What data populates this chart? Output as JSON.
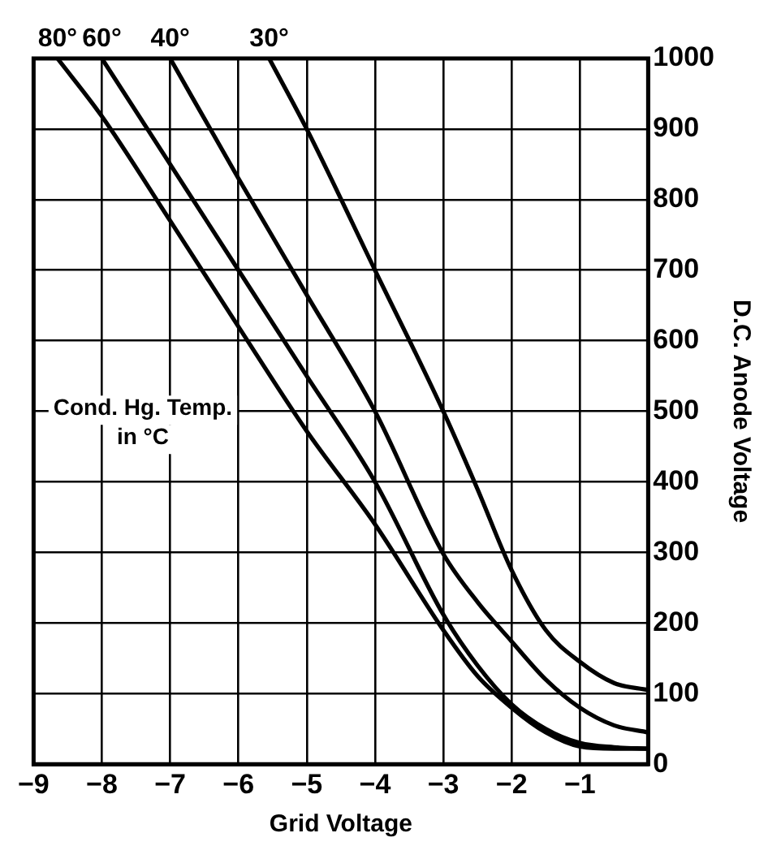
{
  "chart_data": {
    "type": "line",
    "xlabel": "Grid Voltage",
    "ylabel": "D.C. Anode Voltage",
    "legend_title": "Cond. Hg. Temp. in °C",
    "xlim": [
      -9,
      0
    ],
    "xticks": [
      -9,
      -8,
      -7,
      -6,
      -5,
      -4,
      -3,
      -2,
      -1,
      {
        "value": 0,
        "label": null
      }
    ],
    "ylim": [
      0,
      1000
    ],
    "yticks": [
      0,
      100,
      200,
      300,
      400,
      500,
      600,
      700,
      800,
      900,
      1000
    ],
    "grid": true,
    "legend": false,
    "marker": "none",
    "line_style": "solid",
    "series": [
      {
        "name": "80°",
        "color": "#000000",
        "x": [
          -8.65,
          -8,
          -7,
          -6,
          -5,
          -4,
          -3,
          -2.5,
          -2,
          -1.5,
          -1,
          -0.5,
          0
        ],
        "values": [
          1000,
          918,
          770,
          620,
          472,
          340,
          190,
          125,
          80,
          45,
          25,
          22,
          22
        ]
      },
      {
        "name": "60°",
        "color": "#000000",
        "x": [
          -8,
          -7,
          -6,
          -5,
          -4,
          -3,
          -2.5,
          -2,
          -1.5,
          -1,
          -0.5,
          0
        ],
        "values": [
          1000,
          850,
          700,
          550,
          400,
          212,
          140,
          85,
          50,
          30,
          24,
          22
        ]
      },
      {
        "name": "40°",
        "color": "#000000",
        "x": [
          -7,
          -6,
          -5,
          -4,
          -3,
          -2.5,
          -2,
          -1.5,
          -1,
          -0.5,
          0
        ],
        "values": [
          1000,
          830,
          665,
          500,
          298,
          230,
          174,
          120,
          80,
          55,
          45
        ]
      },
      {
        "name": "30°",
        "color": "#000000",
        "x": [
          -5.55,
          -5,
          -4,
          -3,
          -2.5,
          -2,
          -1.5,
          -1,
          -0.5,
          0
        ],
        "values": [
          1000,
          900,
          700,
          500,
          390,
          275,
          190,
          145,
          115,
          105
        ]
      }
    ]
  }
}
